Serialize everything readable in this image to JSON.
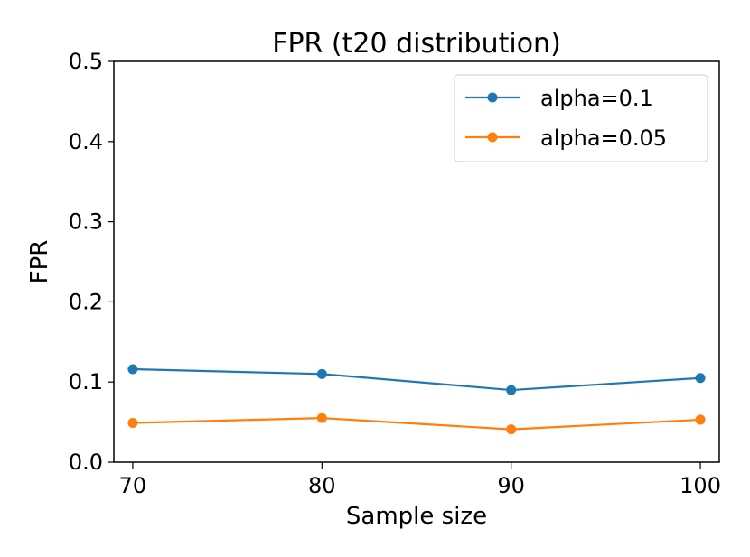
{
  "chart_data": {
    "type": "line",
    "title": "FPR (t20 distribution)",
    "xlabel": "Sample size",
    "ylabel": "FPR",
    "x": [
      70,
      80,
      90,
      100
    ],
    "x_ticks": [
      "70",
      "80",
      "90",
      "100"
    ],
    "xlim": [
      69,
      101
    ],
    "y_ticks": [
      "0.0",
      "0.1",
      "0.2",
      "0.3",
      "0.4",
      "0.5"
    ],
    "ylim": [
      0,
      0.5
    ],
    "grid": false,
    "legend_position": "top-right",
    "series": [
      {
        "name": "alpha=0.1",
        "color": "#1f77b4",
        "values": [
          0.116,
          0.11,
          0.09,
          0.105
        ]
      },
      {
        "name": "alpha=0.05",
        "color": "#ff7f0e",
        "values": [
          0.049,
          0.055,
          0.041,
          0.053
        ]
      }
    ]
  }
}
